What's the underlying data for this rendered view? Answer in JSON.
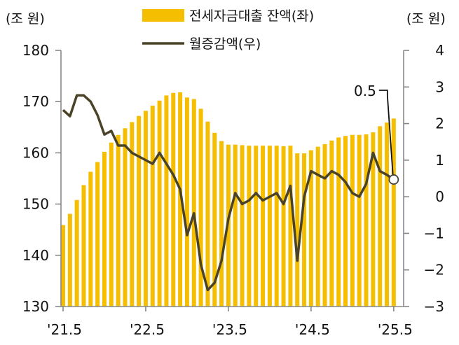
{
  "chart_data": {
    "type": "bar+line",
    "colors": {
      "bar": "#F5BE00",
      "line": "#4A4327",
      "axis": "#888888"
    },
    "legend": {
      "bar_label": "전세자금대출 잔액(좌)",
      "line_label": "월증감액(우)",
      "placement": "top-center"
    },
    "left_axis": {
      "unit": "(조 원)",
      "ylim": [
        130,
        180
      ],
      "ticks": [
        "130",
        "140",
        "150",
        "160",
        "170",
        "180"
      ]
    },
    "right_axis": {
      "unit": "(조 원)",
      "ylim": [
        -3,
        4
      ],
      "ticks": [
        "−3",
        "−2",
        "−1",
        "0",
        "1",
        "2",
        "3",
        "4"
      ]
    },
    "x_tick_labels": [
      "'21.5",
      "'22.5",
      "'23.5",
      "'24.5",
      "'25.5"
    ],
    "x": [
      "2021-05",
      "2021-06",
      "2021-07",
      "2021-08",
      "2021-09",
      "2021-10",
      "2021-11",
      "2021-12",
      "2022-01",
      "2022-02",
      "2022-03",
      "2022-04",
      "2022-05",
      "2022-06",
      "2022-07",
      "2022-08",
      "2022-09",
      "2022-10",
      "2022-11",
      "2022-12",
      "2023-01",
      "2023-02",
      "2023-03",
      "2023-04",
      "2023-05",
      "2023-06",
      "2023-07",
      "2023-08",
      "2023-09",
      "2023-10",
      "2023-11",
      "2023-12",
      "2024-01",
      "2024-02",
      "2024-03",
      "2024-04",
      "2024-05",
      "2024-06",
      "2024-07",
      "2024-08",
      "2024-09",
      "2024-10",
      "2024-11",
      "2024-12",
      "2025-01",
      "2025-02",
      "2025-03",
      "2025-04",
      "2025-05"
    ],
    "series": [
      {
        "name": "전세자금대출 잔액(좌)",
        "type": "bar",
        "axis": "left",
        "values": [
          145.9,
          148.1,
          150.8,
          153.7,
          156.3,
          158.2,
          160.2,
          162.0,
          163.5,
          164.8,
          166.0,
          167.2,
          168.2,
          169.2,
          170.2,
          171.2,
          171.7,
          171.8,
          170.8,
          170.5,
          168.6,
          166.1,
          163.9,
          162.3,
          161.6,
          161.6,
          161.5,
          161.4,
          161.4,
          161.4,
          161.4,
          161.4,
          161.3,
          161.4,
          159.9,
          159.9,
          160.5,
          161.2,
          161.7,
          162.4,
          163.0,
          163.3,
          163.5,
          163.5,
          163.6,
          164.0,
          165.2,
          165.9,
          166.7
        ]
      },
      {
        "name": "월증감액(우)",
        "type": "line",
        "axis": "right",
        "values": [
          2.37,
          2.2,
          2.77,
          2.77,
          2.6,
          2.23,
          1.7,
          1.8,
          1.4,
          1.4,
          1.2,
          1.1,
          1.0,
          0.9,
          1.2,
          0.9,
          0.6,
          0.2,
          -1.05,
          -0.45,
          -1.85,
          -2.55,
          -2.35,
          -1.75,
          -0.6,
          0.1,
          -0.2,
          -0.1,
          0.1,
          -0.1,
          0.0,
          0.1,
          -0.2,
          0.3,
          -1.75,
          0.0,
          0.7,
          0.6,
          0.5,
          0.7,
          0.6,
          0.4,
          0.1,
          0.0,
          0.35,
          1.2,
          0.7,
          0.6,
          0.47
        ]
      }
    ],
    "annotation": {
      "text": "0.5",
      "x": "2025-05",
      "value": 0.47
    }
  }
}
